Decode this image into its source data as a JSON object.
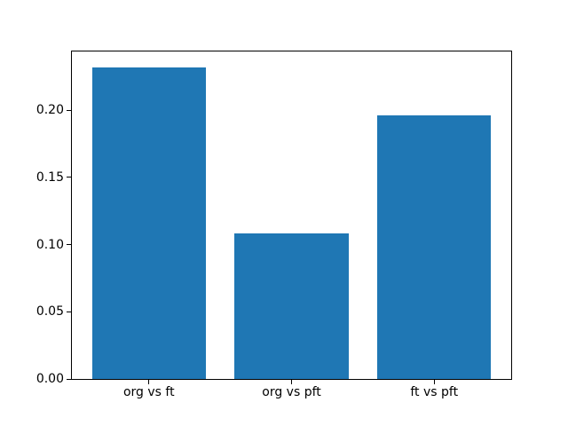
{
  "chart_data": {
    "type": "bar",
    "title": "",
    "xlabel": "",
    "ylabel": "",
    "categories": [
      "org vs ft",
      "org vs pft",
      "ft vs pft"
    ],
    "x_positions": [
      0,
      1,
      2
    ],
    "values": [
      0.232,
      0.108,
      0.196
    ],
    "bar_color": "#1f77b4",
    "bar_width": 0.8,
    "xlim": [
      -0.54,
      2.54
    ],
    "ylim": [
      0,
      0.2436
    ],
    "yticks": [
      0,
      0.05,
      0.1,
      0.15,
      0.2
    ],
    "ytick_labels": [
      "0.00",
      "0.05",
      "0.10",
      "0.15",
      "0.20"
    ],
    "grid": false,
    "legend": null,
    "background": "#ffffff",
    "spine_color": "#000000",
    "text_color": "#000000"
  }
}
